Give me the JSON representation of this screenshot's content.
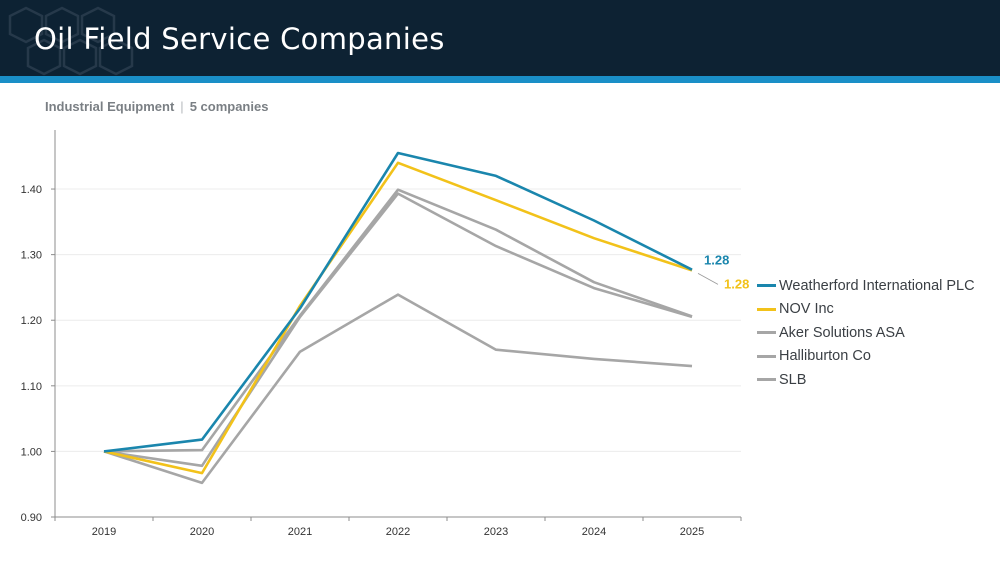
{
  "header": {
    "title": "Oil Field Service Companies"
  },
  "subtitle": {
    "sector": "Industrial Equipment",
    "separator": "|",
    "count": "5 companies"
  },
  "colors": {
    "header_bg": "#0d2233",
    "accent": "#1a8fc7",
    "highlight_blue": "#1a86ad",
    "highlight_yellow": "#f2c21a",
    "peer_gray": "#a6a6a6"
  },
  "chart_data": {
    "type": "line",
    "title": "",
    "xlabel": "",
    "ylabel": "",
    "x": [
      "2019",
      "2020",
      "2021",
      "2022",
      "2023",
      "2024",
      "2025"
    ],
    "ylim": [
      0.9,
      1.48
    ],
    "yticks": [
      "0.90",
      "1.00",
      "1.10",
      "1.20",
      "1.30",
      "1.40"
    ],
    "grid": true,
    "legend_position": "right",
    "series": [
      {
        "name": "Weatherford International PLC",
        "color": "#1a86ad",
        "values": [
          1.0,
          1.018,
          1.218,
          1.455,
          1.42,
          1.352,
          1.277
        ],
        "end_label": "1.28"
      },
      {
        "name": "NOV Inc",
        "color": "#f2c21a",
        "values": [
          1.0,
          0.967,
          1.222,
          1.44,
          1.383,
          1.325,
          1.276
        ],
        "end_label": "1.28"
      },
      {
        "name": "Aker Solutions ASA",
        "color": "#a6a6a6",
        "values": [
          1.0,
          1.002,
          1.207,
          1.399,
          1.338,
          1.258,
          1.206
        ]
      },
      {
        "name": "Halliburton Co",
        "color": "#a6a6a6",
        "values": [
          1.0,
          0.978,
          1.205,
          1.393,
          1.313,
          1.249,
          1.205
        ]
      },
      {
        "name": "SLB",
        "color": "#a6a6a6",
        "values": [
          1.0,
          0.952,
          1.152,
          1.239,
          1.155,
          1.141,
          1.13
        ]
      }
    ]
  }
}
